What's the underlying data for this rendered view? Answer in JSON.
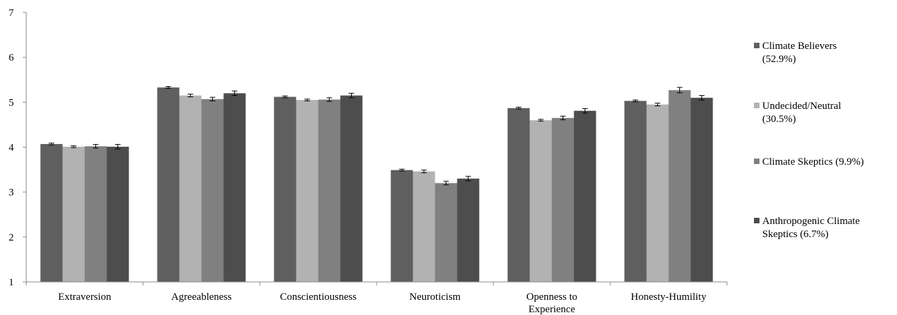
{
  "chart_data": {
    "type": "bar",
    "ylim": [
      1,
      7
    ],
    "yticks": [
      "1",
      "2",
      "3",
      "4",
      "5",
      "6",
      "7"
    ],
    "grid": false,
    "legend_position": "right",
    "error_bars": true,
    "categories": [
      [
        "Extraversion"
      ],
      [
        "Agreeableness"
      ],
      [
        "Conscientiousness"
      ],
      [
        "Neuroticism"
      ],
      [
        "Openness to",
        "Experience"
      ],
      [
        "Honesty-Humility"
      ]
    ],
    "series": [
      {
        "name": [
          "Climate Believers",
          "(52.9%)"
        ],
        "color": "#5f5f5f",
        "values": [
          4.07,
          5.33,
          5.12,
          3.49,
          4.87,
          5.03
        ],
        "errors": [
          0.02,
          0.02,
          0.02,
          0.02,
          0.02,
          0.02
        ]
      },
      {
        "name": [
          "Undecided/Neutral",
          "(30.5%)"
        ],
        "color": "#b2b2b2",
        "values": [
          4.01,
          5.15,
          5.05,
          3.46,
          4.6,
          4.95
        ],
        "errors": [
          0.02,
          0.03,
          0.02,
          0.03,
          0.02,
          0.03
        ]
      },
      {
        "name": [
          "Climate Skeptics (9.9%)"
        ],
        "color": "#808080",
        "values": [
          4.02,
          5.07,
          5.06,
          3.2,
          4.65,
          5.27
        ],
        "errors": [
          0.04,
          0.04,
          0.04,
          0.04,
          0.04,
          0.06
        ]
      },
      {
        "name": [
          "Anthropogenic Climate",
          "Skeptics (6.7%)"
        ],
        "color": "#4d4d4d",
        "values": [
          4.01,
          5.2,
          5.15,
          3.3,
          4.81,
          5.1
        ],
        "errors": [
          0.05,
          0.05,
          0.05,
          0.05,
          0.05,
          0.05
        ]
      }
    ]
  }
}
